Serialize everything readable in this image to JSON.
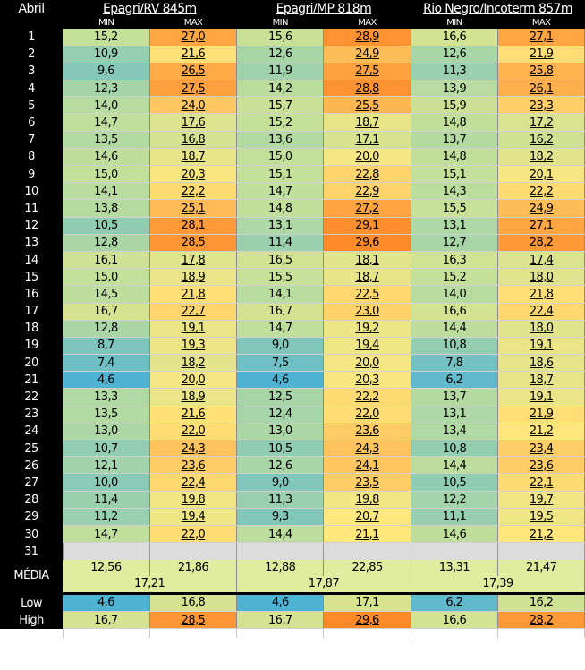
{
  "colors": {
    "header_bg": "#000000",
    "cool": "#4fb3d4",
    "mild": "#c3e09a",
    "warm": "#ffe87e",
    "hot": "#ff8a2a",
    "blank_row": "#dcdcdc",
    "average_row": "#e0eda0"
  },
  "chart_data": {
    "type": "table",
    "corner_label": "Abril",
    "stations": [
      "Epagri/RV 845m",
      "Epagri/MP 818m",
      "Rio Negro/Incoterm 857m"
    ],
    "sub_headers": [
      "MIN",
      "MAX"
    ],
    "days": [
      {
        "day": "1",
        "values": [
          "15,2",
          "27,0",
          "15,6",
          "28,9",
          "16,6",
          "27,1"
        ]
      },
      {
        "day": "2",
        "values": [
          "10,9",
          "21,6",
          "12,6",
          "24,9",
          "12,6",
          "21,9"
        ]
      },
      {
        "day": "3",
        "values": [
          "9,6",
          "26,5",
          "11,9",
          "27,5",
          "11,3",
          "25,8"
        ]
      },
      {
        "day": "4",
        "values": [
          "12,3",
          "27,5",
          "14,2",
          "28,8",
          "13,9",
          "26,1"
        ]
      },
      {
        "day": "5",
        "values": [
          "14,0",
          "24,0",
          "15,7",
          "25,5",
          "15,9",
          "23,3"
        ]
      },
      {
        "day": "6",
        "values": [
          "14,7",
          "17,6",
          "15,2",
          "18,7",
          "14,8",
          "17,2"
        ]
      },
      {
        "day": "7",
        "values": [
          "13,5",
          "16,8",
          "13,6",
          "17,1",
          "13,7",
          "16,2"
        ]
      },
      {
        "day": "8",
        "values": [
          "14,6",
          "18,7",
          "15,0",
          "20,0",
          "14,8",
          "18,2"
        ]
      },
      {
        "day": "9",
        "values": [
          "15,0",
          "20,3",
          "15,1",
          "22,8",
          "15,1",
          "20,1"
        ]
      },
      {
        "day": "10",
        "values": [
          "14,1",
          "22,2",
          "14,7",
          "22,9",
          "14,3",
          "22,2"
        ]
      },
      {
        "day": "11",
        "values": [
          "13,8",
          "25,1",
          "14,8",
          "27,2",
          "15,5",
          "24,9"
        ]
      },
      {
        "day": "12",
        "values": [
          "10,5",
          "28,1",
          "13,1",
          "29,1",
          "13,1",
          "27,1"
        ]
      },
      {
        "day": "13",
        "values": [
          "12,8",
          "28,5",
          "11,4",
          "29,6",
          "12,7",
          "28,2"
        ]
      },
      {
        "day": "14",
        "values": [
          "16,1",
          "17,8",
          "16,5",
          "18,1",
          "16,3",
          "17,4"
        ]
      },
      {
        "day": "15",
        "values": [
          "15,0",
          "18,9",
          "15,5",
          "18,7",
          "15,2",
          "18,0"
        ]
      },
      {
        "day": "16",
        "values": [
          "14,5",
          "21,8",
          "14,1",
          "22,5",
          "14,0",
          "21,8"
        ]
      },
      {
        "day": "17",
        "values": [
          "16,7",
          "22,7",
          "16,7",
          "23,0",
          "16,6",
          "22,4"
        ]
      },
      {
        "day": "18",
        "values": [
          "12,8",
          "19,1",
          "14,7",
          "19,2",
          "14,4",
          "18,0"
        ]
      },
      {
        "day": "19",
        "values": [
          "8,7",
          "19,3",
          "9,0",
          "19,4",
          "10,8",
          "19,1"
        ]
      },
      {
        "day": "20",
        "values": [
          "7,4",
          "18,2",
          "7,5",
          "20,0",
          "7,8",
          "18,6"
        ]
      },
      {
        "day": "21",
        "values": [
          "4,6",
          "20,0",
          "4,6",
          "20,3",
          "6,2",
          "18,7"
        ]
      },
      {
        "day": "22",
        "values": [
          "13,3",
          "18,9",
          "12,5",
          "22,2",
          "13,7",
          "19,1"
        ]
      },
      {
        "day": "23",
        "values": [
          "13,5",
          "21,6",
          "12,4",
          "22,0",
          "13,1",
          "21,9"
        ]
      },
      {
        "day": "24",
        "values": [
          "13,0",
          "22,0",
          "13,0",
          "23,6",
          "13,4",
          "21,2"
        ]
      },
      {
        "day": "25",
        "values": [
          "10,7",
          "24,3",
          "10,5",
          "24,3",
          "10,8",
          "23,4"
        ]
      },
      {
        "day": "26",
        "values": [
          "12,1",
          "23,6",
          "12,6",
          "24,1",
          "14,4",
          "23,6"
        ]
      },
      {
        "day": "27",
        "values": [
          "10,0",
          "22,4",
          "9,0",
          "23,5",
          "10,5",
          "22,1"
        ]
      },
      {
        "day": "28",
        "values": [
          "11,4",
          "19,8",
          "11,3",
          "19,8",
          "12,2",
          "19,7"
        ]
      },
      {
        "day": "29",
        "values": [
          "11,2",
          "19,4",
          "9,3",
          "20,7",
          "11,1",
          "19,5"
        ]
      },
      {
        "day": "30",
        "values": [
          "14,7",
          "22,0",
          "14,4",
          "21,1",
          "14,6",
          "21,2"
        ]
      }
    ],
    "empty_day": "31",
    "media": {
      "label": "MÉDIA",
      "values": [
        "12,56",
        "21,86",
        "12,88",
        "22,85",
        "13,31",
        "21,47"
      ],
      "station_averages": [
        "17,21",
        "17,87",
        "17,39"
      ]
    },
    "low": {
      "label": "Low",
      "values": [
        "4,6",
        "16,8",
        "4,6",
        "17,1",
        "6,2",
        "16,2"
      ]
    },
    "high": {
      "label": "High",
      "values": [
        "16,7",
        "28,5",
        "16,7",
        "29,6",
        "16,6",
        "28,2"
      ]
    }
  }
}
